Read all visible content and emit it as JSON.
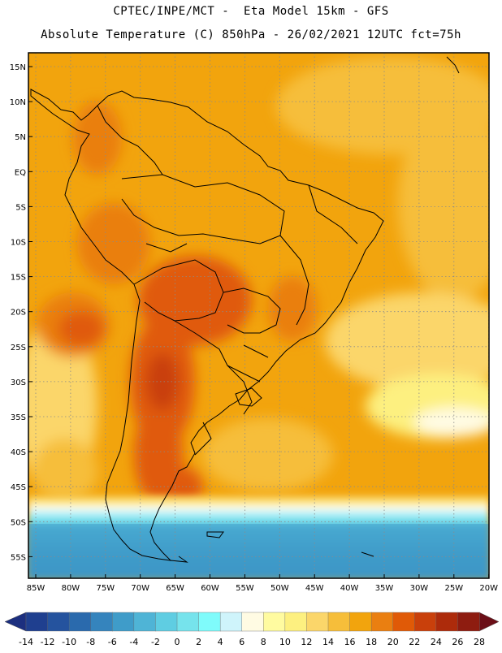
{
  "title": {
    "line1": "CPTEC/INPE/MCT -  Eta Model 15km - GFS",
    "line2": "Absolute Temperature (C) 850hPa - 26/02/2021 12UTC fct=75h"
  },
  "map": {
    "region": "South America",
    "lat_labels": [
      "15N",
      "10N",
      "5N",
      "EQ",
      "5S",
      "10S",
      "15S",
      "20S",
      "25S",
      "30S",
      "35S",
      "40S",
      "45S",
      "50S",
      "55S"
    ],
    "lon_labels": [
      "85W",
      "80W",
      "75W",
      "70W",
      "65W",
      "60W",
      "55W",
      "50W",
      "45W",
      "40W",
      "35W",
      "30W",
      "25W",
      "20W"
    ]
  },
  "colorbar": {
    "labels": [
      "-14",
      "-12",
      "-10",
      "-8",
      "-6",
      "-4",
      "-2",
      "0",
      "2",
      "4",
      "6",
      "8",
      "10",
      "12",
      "14",
      "16",
      "18",
      "20",
      "22",
      "24",
      "26",
      "28"
    ],
    "colors": [
      "#1f3f8f",
      "#25539e",
      "#2a6aad",
      "#3584bd",
      "#3f9cc9",
      "#4fb4d6",
      "#5fcde2",
      "#76e3ec",
      "#7ffbfb",
      "#cff4fb",
      "#fffbe3",
      "#fffba0",
      "#fdf080",
      "#fbd66a",
      "#f6be3a",
      "#f2a40d",
      "#ea7f11",
      "#e05a07",
      "#c9400b",
      "#ad2b0b",
      "#8e1c10"
    ],
    "low_color": "#1c2f7f",
    "high_color": "#6b0e17"
  }
}
